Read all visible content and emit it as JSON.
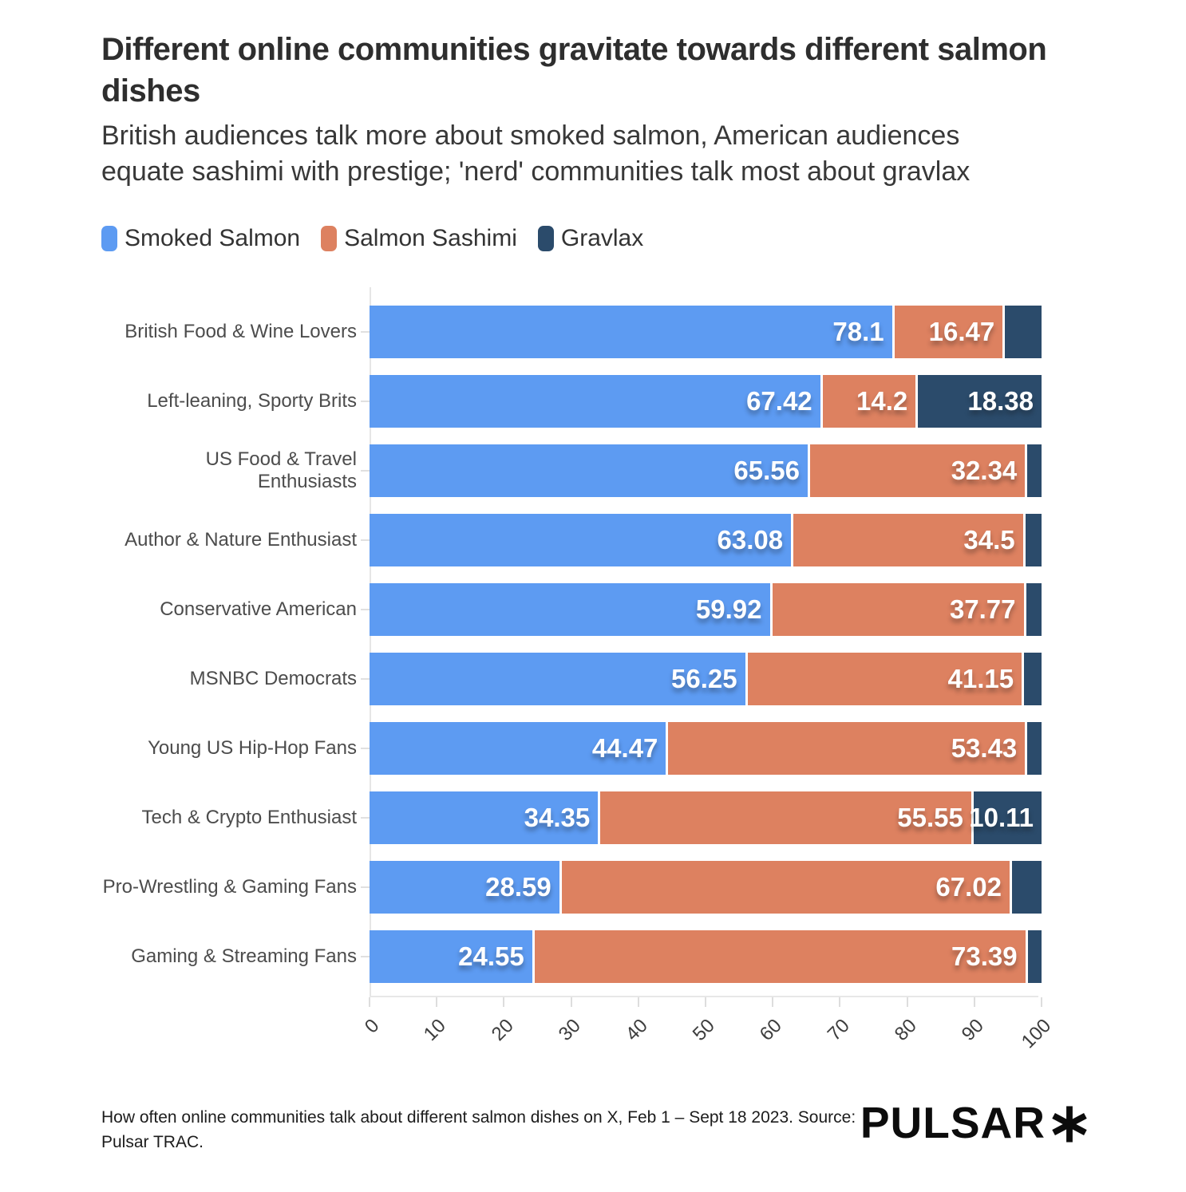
{
  "header": {
    "title": "Different online communities gravitate towards different salmon dishes",
    "subtitle": "British audiences talk more about smoked salmon, American audiences equate sashimi with prestige; 'nerd' communities talk most about gravlax"
  },
  "chart_data": {
    "type": "bar",
    "variant": "horizontal-stacked",
    "categories": [
      "British Food & Wine Lovers",
      "Left-leaning, Sporty Brits",
      "US Food & Travel Enthusiasts",
      "Author & Nature Enthusiast",
      "Conservative American",
      "MSNBC Democrats",
      "Young US Hip-Hop Fans",
      "Tech & Crypto Enthusiast",
      "Pro-Wrestling & Gaming Fans",
      "Gaming & Streaming Fans"
    ],
    "series": [
      {
        "name": "Smoked Salmon",
        "color": "#5d9bf2",
        "values": [
          78.1,
          67.42,
          65.56,
          63.08,
          59.92,
          56.25,
          44.47,
          34.35,
          28.59,
          24.55
        ]
      },
      {
        "name": "Salmon Sashimi",
        "color": "#dd8160",
        "values": [
          16.47,
          14.2,
          32.34,
          34.5,
          37.77,
          41.15,
          53.43,
          55.55,
          67.02,
          73.39
        ]
      },
      {
        "name": "Gravlax",
        "color": "#2b4b6b",
        "values": [
          5.43,
          18.38,
          2.1,
          2.42,
          2.31,
          2.6,
          2.1,
          10.11,
          4.39,
          2.06
        ]
      }
    ],
    "value_labels": [
      [
        "78.1",
        "16.47",
        null
      ],
      [
        "67.42",
        "14.2",
        "18.38"
      ],
      [
        "65.56",
        "32.34",
        null
      ],
      [
        "63.08",
        "34.5",
        null
      ],
      [
        "59.92",
        "37.77",
        null
      ],
      [
        "56.25",
        "41.15",
        null
      ],
      [
        "44.47",
        "53.43",
        null
      ],
      [
        "34.35",
        "55.55",
        "10.11"
      ],
      [
        "28.59",
        "67.02",
        null
      ],
      [
        "24.55",
        "73.39",
        null
      ]
    ],
    "xlim": [
      0,
      100
    ],
    "x_ticks": [
      0,
      10,
      20,
      30,
      40,
      50,
      60,
      70,
      80,
      90,
      100
    ],
    "legend_position": "top",
    "grid": false
  },
  "footer": {
    "source_note": "How often online communities talk about different salmon dishes on X, Feb 1 – Sept 18 2023. Source: Pulsar TRAC.",
    "logo_text": "PULSAR",
    "logo_mark_icon": "asterisk-icon"
  },
  "colors": {
    "smoked_salmon": "#5d9bf2",
    "salmon_sashimi": "#dd8160",
    "gravlax": "#2b4b6b",
    "axis_line": "#e6e6e6",
    "background": "#ffffff"
  }
}
